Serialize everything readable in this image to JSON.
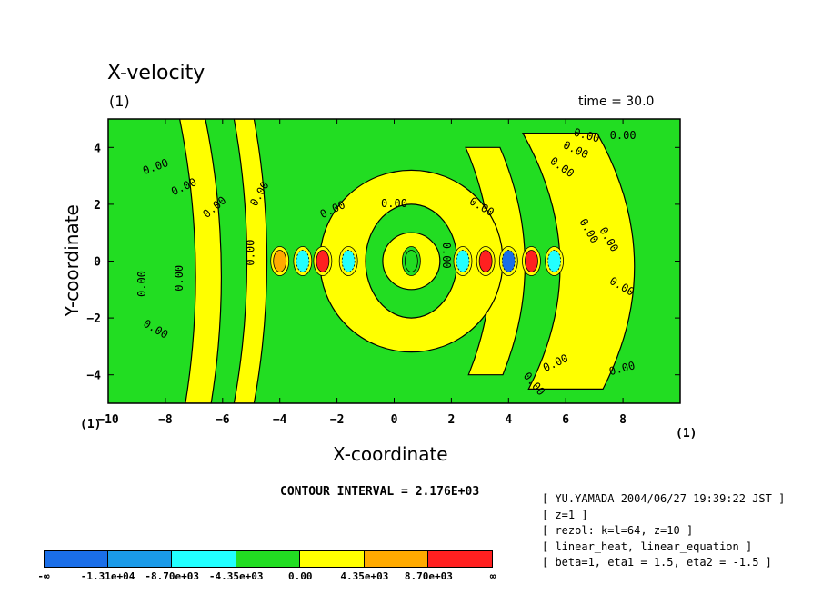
{
  "title": "X-velocity",
  "panel_label": "(1)",
  "time_label": "time = 30.0",
  "corner_left": "(1)",
  "corner_right": "(1)",
  "contour_interval": "CONTOUR INTERVAL = 2.176E+03",
  "info_lines": [
    "[ YU.YAMADA 2004/06/27 19:39:22 JST ]",
    "[ z=1 ]",
    "[ rezol: k=l=64, z=10 ]",
    "[ linear_heat, linear_equation ]",
    "[ beta=1, eta1 = 1.5, eta2 = -1.5 ]"
  ],
  "colorbar": {
    "colors": [
      "#1a6ee8",
      "#1a9ae8",
      "#22ffff",
      "#22dd22",
      "#ffff00",
      "#ffaa00",
      "#ff2020"
    ],
    "labels": [
      "-∞",
      "-1.31e+04",
      "-8.70e+03",
      "-4.35e+03",
      "0.00",
      "4.35e+03",
      "8.70e+03",
      "∞"
    ]
  },
  "chart_data": {
    "type": "contour",
    "title": "X-velocity",
    "xlabel": "X-coordinate",
    "ylabel": "Y-coordinate",
    "xlim": [
      -10,
      10
    ],
    "ylim": [
      -5,
      5
    ],
    "x_ticks": [
      -10,
      -8,
      -6,
      -4,
      -2,
      0,
      2,
      4,
      6,
      8
    ],
    "y_ticks": [
      -4,
      -2,
      0,
      2,
      4
    ],
    "contour_interval": 2176,
    "contour_label": "0.00",
    "background_color": "#22dd22",
    "zero_band_color": "#ffff00",
    "zero_bands": [
      {
        "x": [
          -7.5,
          -6.5,
          -7.3,
          -6.4
        ],
        "y": [
          5,
          0,
          -5,
          -5
        ]
      },
      {
        "x": [
          -5.6,
          -4.7,
          -5.6,
          -4.9
        ],
        "y": [
          5,
          0,
          -5,
          -5
        ]
      },
      {
        "x": [
          2.5,
          4.2,
          2.6,
          3.8
        ],
        "y": [
          4,
          0,
          -4,
          -4
        ]
      },
      {
        "x": [
          4.5,
          7.0,
          4.7,
          7.3
        ],
        "y": [
          4.5,
          0,
          -4.5,
          -4.5
        ]
      }
    ],
    "extrema": [
      {
        "x": -4.0,
        "y": 0,
        "sign": "positive",
        "level": "4.35e+03"
      },
      {
        "x": -3.2,
        "y": 0,
        "sign": "negative",
        "level": "-4.35e+03"
      },
      {
        "x": -2.5,
        "y": 0,
        "sign": "positive",
        "level": "8.70e+03"
      },
      {
        "x": -1.6,
        "y": 0,
        "sign": "negative",
        "level": "-4.35e+03"
      },
      {
        "x": 0.6,
        "y": 0,
        "sign": "zero",
        "level": "0.00"
      },
      {
        "x": 2.4,
        "y": 0,
        "sign": "negative",
        "level": "-4.35e+03"
      },
      {
        "x": 3.2,
        "y": 0,
        "sign": "positive",
        "level": "8.70e+03"
      },
      {
        "x": 4.0,
        "y": 0,
        "sign": "negative",
        "level": "-1.31e+04"
      },
      {
        "x": 4.8,
        "y": 0,
        "sign": "positive",
        "level": "8.70e+03"
      },
      {
        "x": 5.6,
        "y": 0,
        "sign": "negative",
        "level": "-4.35e+03"
      }
    ],
    "grid": false,
    "legend": "colorbar-bottom"
  }
}
